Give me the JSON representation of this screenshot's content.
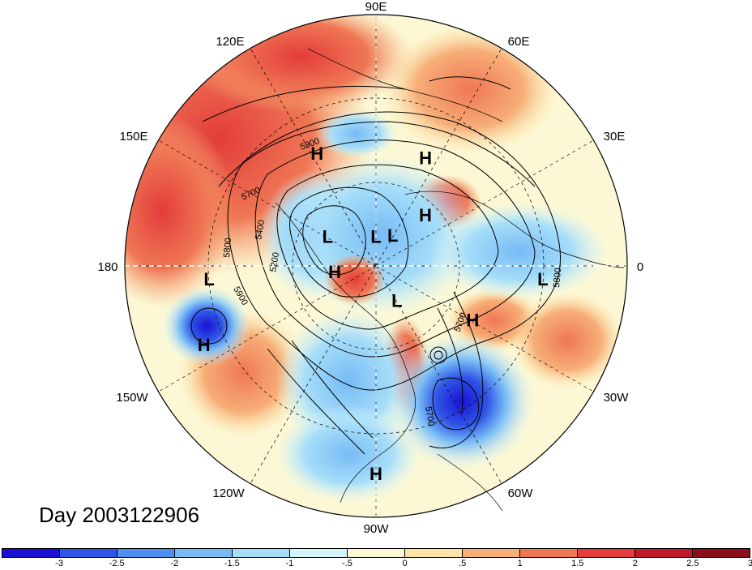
{
  "title": "Day 2003122906",
  "longitude_labels": [
    "90E",
    "60E",
    "30E",
    "0",
    "30W",
    "60W",
    "90W",
    "120W",
    "150W",
    "180",
    "150E",
    "120E"
  ],
  "pressure_centers": [
    {
      "type": "H",
      "lon": 118,
      "lat": 45
    },
    {
      "type": "H",
      "lon": 65,
      "lat": 48
    },
    {
      "type": "H",
      "lon": 45,
      "lat": 65
    },
    {
      "type": "H",
      "lon": -170,
      "lat": 75
    },
    {
      "type": "H",
      "lon": -30,
      "lat": 50
    },
    {
      "type": "H",
      "lon": -155,
      "lat": 22
    },
    {
      "type": "H",
      "lon": -90,
      "lat": 15
    },
    {
      "type": "L",
      "lon": 150,
      "lat": 70
    },
    {
      "type": "L",
      "lon": 90,
      "lat": 80
    },
    {
      "type": "L",
      "lon": 60,
      "lat": 78
    },
    {
      "type": "L",
      "lon": -5,
      "lat": 30
    },
    {
      "type": "L",
      "lon": -60,
      "lat": 75
    },
    {
      "type": "L",
      "lon": -175,
      "lat": 30
    }
  ],
  "contour_labels": [
    "5900",
    "5700",
    "5400",
    "5200",
    "5800",
    "5900",
    "5800",
    "5700",
    "5700"
  ],
  "colorbar": {
    "ticks": [
      "-3",
      "-2.5",
      "-2",
      "-1.5",
      "-1",
      "-.5",
      "0",
      ".5",
      "1",
      "1.5",
      "2",
      "2.5",
      "3"
    ],
    "colors": [
      "#1a10d6",
      "#2f55e6",
      "#4f8ff0",
      "#77bbf6",
      "#a6def9",
      "#d4f4fb",
      "#fcf8d5",
      "#fde3a5",
      "#f7ae77",
      "#ef7755",
      "#e33c3a",
      "#c0192a",
      "#8c0e1b"
    ]
  }
}
